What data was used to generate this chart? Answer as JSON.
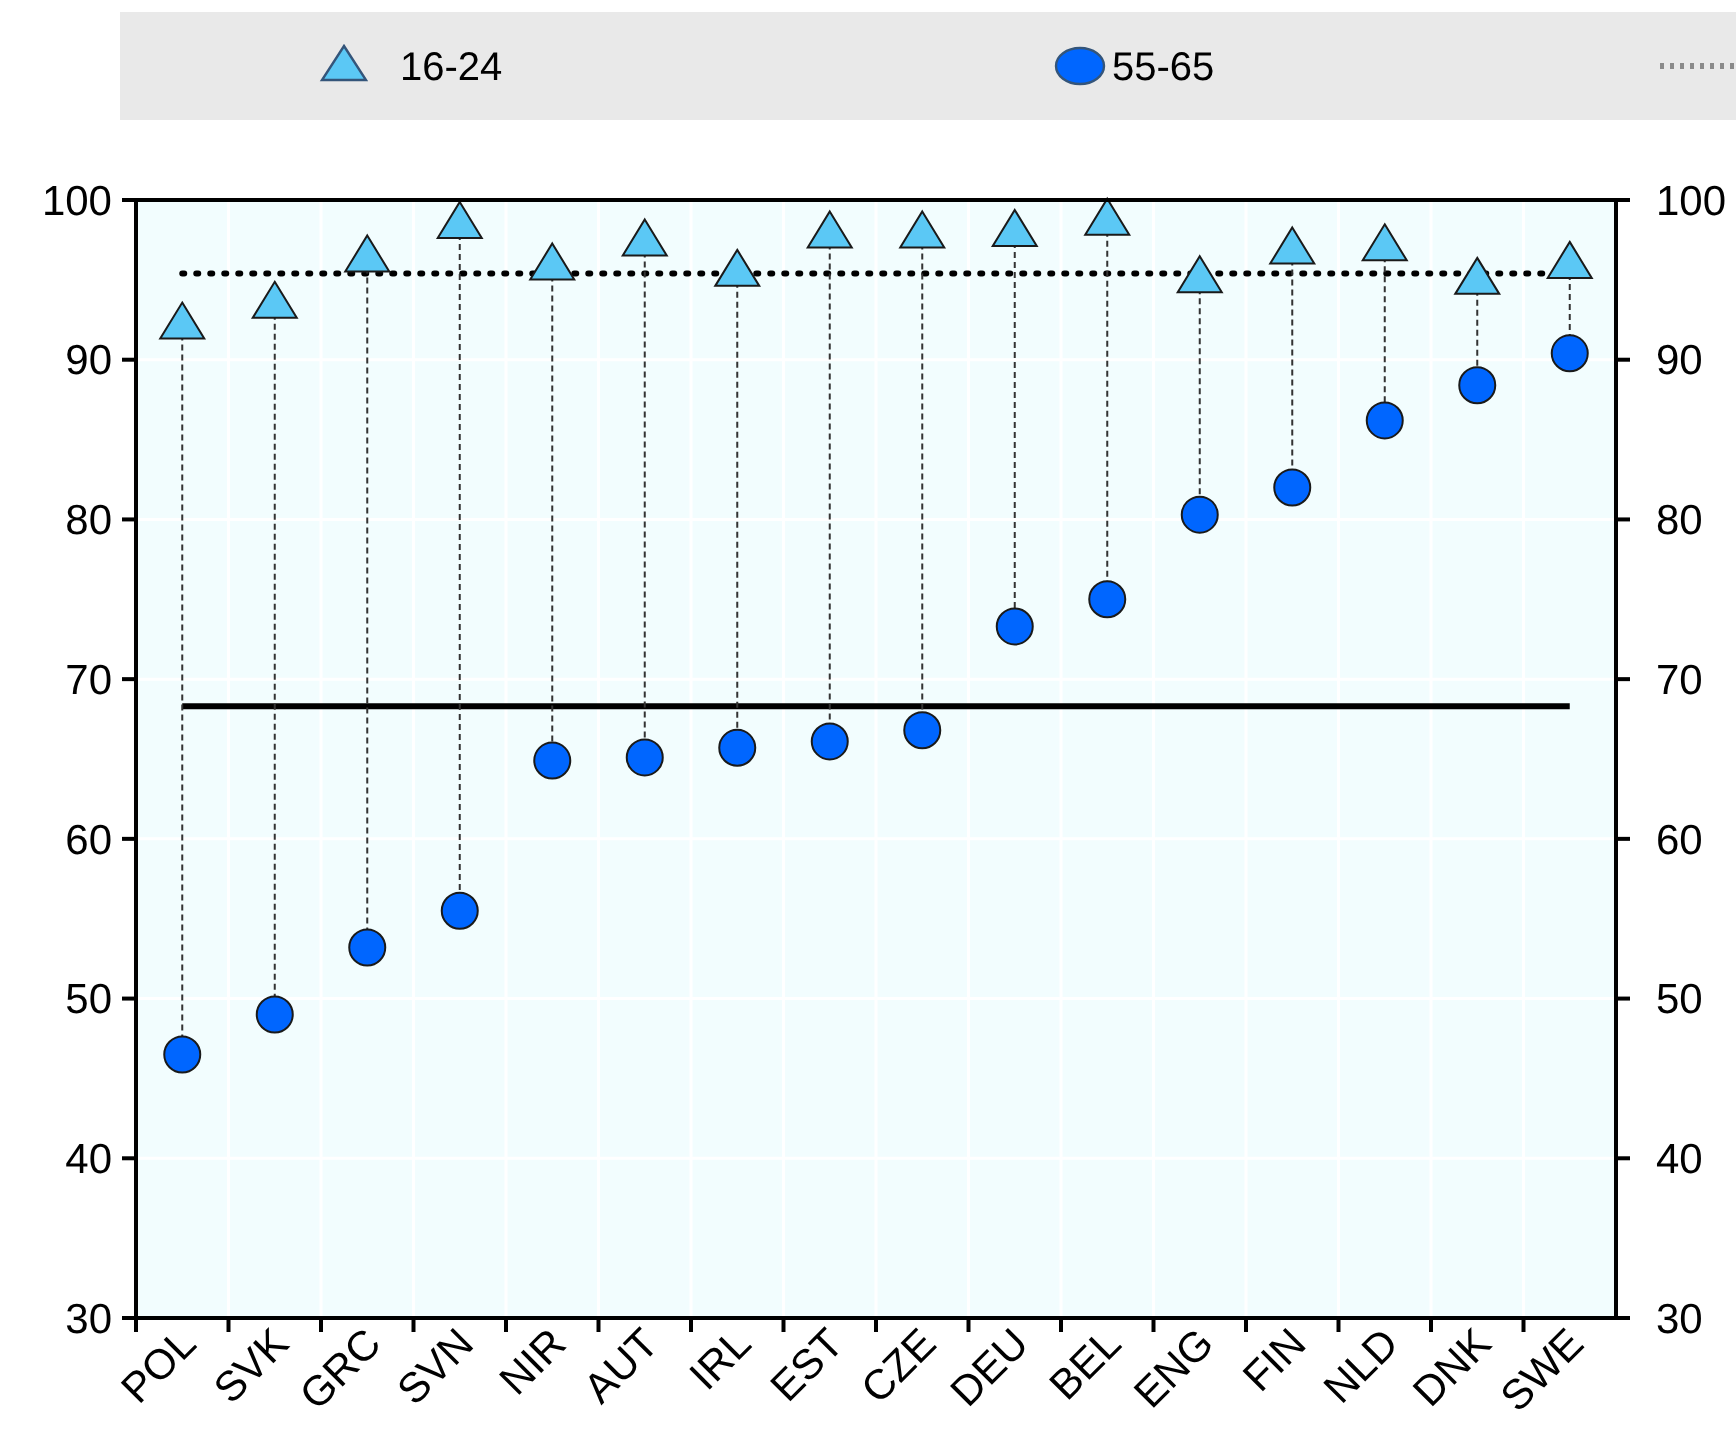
{
  "chart_data": {
    "type": "scatter",
    "categories": [
      "POL",
      "SVK",
      "GRC",
      "SVN",
      "NIR",
      "AUT",
      "IRL",
      "EST",
      "CZE",
      "DEU",
      "BEL",
      "ENG",
      "FIN",
      "NLD",
      "DNK",
      "SWE"
    ],
    "series": [
      {
        "name": "16-24",
        "color": "#5bc8f5",
        "marker": "triangle",
        "values": [
          92.2,
          93.5,
          96.4,
          98.5,
          95.9,
          97.4,
          95.5,
          97.9,
          97.9,
          98.0,
          98.7,
          95.1,
          96.9,
          97.1,
          95.0,
          96.0
        ]
      },
      {
        "name": "55-65",
        "color": "#0066ff",
        "marker": "circle",
        "values": [
          46.5,
          49.0,
          53.2,
          55.5,
          64.9,
          65.1,
          65.7,
          66.1,
          66.8,
          73.3,
          75.0,
          80.3,
          82.0,
          86.2,
          88.4,
          90.4
        ]
      }
    ],
    "ylim": [
      30,
      100
    ],
    "yticks": [
      30,
      40,
      50,
      60,
      70,
      80,
      90,
      100
    ],
    "y2lim": [
      30,
      100
    ],
    "y2ticks": [
      30,
      40,
      50,
      60,
      70,
      80,
      90,
      100
    ],
    "ref_lines": [
      {
        "axis": "y",
        "value": 95.4,
        "line_style": "dotted",
        "color": "#000000"
      },
      {
        "axis": "y",
        "value": 68.3,
        "line_style": "solid",
        "color": "#000000"
      }
    ],
    "grid": true,
    "legend": "top"
  }
}
